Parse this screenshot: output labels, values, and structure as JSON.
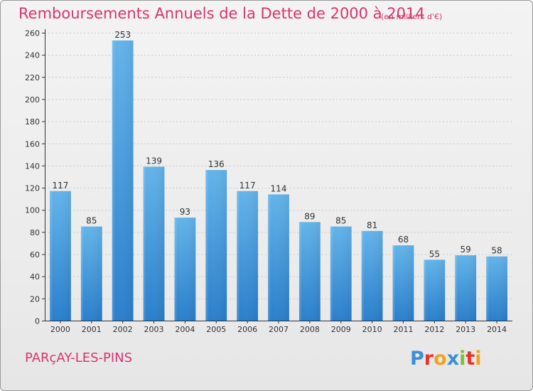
{
  "title": "Remboursements Annuels de la Dette de 2000 à 2014",
  "units_note": "(en milliers d'€)",
  "town": "PARçAY-LES-PINS",
  "logo": {
    "text": "Proxiti",
    "colors": [
      "#3a8fd6",
      "#e8332e",
      "#f2a21b",
      "#3a8fd6",
      "#7cbf3a",
      "#e8332e",
      "#f2a21b"
    ]
  },
  "colors": {
    "accent": "#d8346f",
    "bar_top": "#63b4ea",
    "bar_bottom": "#2a7fcc"
  },
  "chart_data": {
    "type": "bar",
    "categories": [
      "2000",
      "2001",
      "2002",
      "2003",
      "2004",
      "2005",
      "2006",
      "2007",
      "2008",
      "2009",
      "2010",
      "2011",
      "2012",
      "2013",
      "2014"
    ],
    "values": [
      117,
      85,
      253,
      139,
      93,
      136,
      117,
      114,
      89,
      85,
      81,
      68,
      55,
      59,
      58
    ],
    "ylim": [
      0,
      260
    ],
    "yticks": [
      0,
      20,
      40,
      60,
      80,
      100,
      120,
      140,
      160,
      180,
      200,
      220,
      240,
      260
    ],
    "grid": true
  }
}
